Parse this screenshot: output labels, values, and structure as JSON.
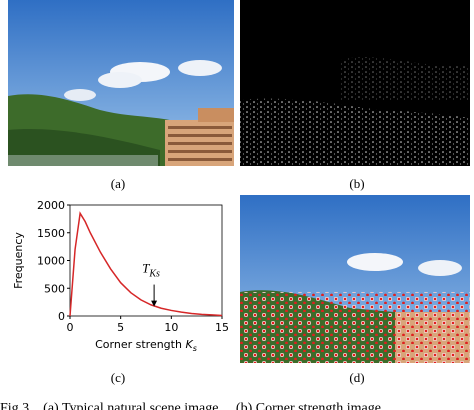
{
  "figure": {
    "panels": [
      "(a)",
      "(b)",
      "(c)",
      "(d)"
    ],
    "caption": "Fig.3    (a) Typical natural scene image.    (b) Corner strength image"
  },
  "chart_data": {
    "type": "line",
    "ylabel": "Frequency",
    "xlabel": "Corner strength",
    "xlabel_var": "K",
    "xlabel_sub": "s",
    "x": [
      0,
      0.5,
      1,
      1.5,
      2,
      3,
      4,
      5,
      6,
      7,
      8,
      9,
      10,
      11,
      12,
      13,
      14,
      15
    ],
    "series": [
      {
        "color": "#d62728",
        "values": [
          0,
          1200,
          1850,
          1700,
          1500,
          1150,
          850,
          600,
          420,
          290,
          200,
          140,
          100,
          70,
          45,
          30,
          20,
          10
        ]
      }
    ],
    "xlim": [
      0,
      15
    ],
    "xticks": [
      0,
      5,
      10,
      15
    ],
    "ylim": [
      0,
      2000
    ],
    "yticks": [
      0,
      500,
      1000,
      1500,
      2000
    ],
    "annotation": {
      "text": "T",
      "subscript": "Ks",
      "x": 8.3,
      "y": 170
    }
  }
}
